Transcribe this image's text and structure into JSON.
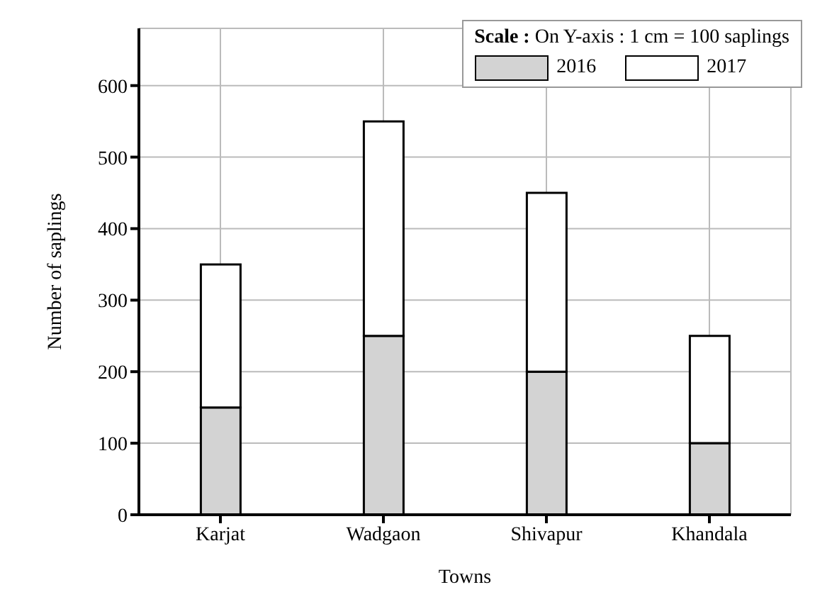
{
  "chart_data": {
    "type": "bar",
    "stacked": true,
    "xlabel": "Towns",
    "ylabel": "Number of saplings",
    "legend_title": "Scale : On Y-axis : 1 cm = 100 saplings",
    "categories": [
      "Karjat",
      "Wadgaon",
      "Shivapur",
      "Khandala"
    ],
    "series": [
      {
        "name": "2016",
        "color": "#d3d3d3",
        "values": [
          150,
          250,
          200,
          100
        ]
      },
      {
        "name": "2017",
        "color": "#ffffff",
        "values": [
          200,
          300,
          250,
          150
        ]
      }
    ],
    "ylim": [
      0,
      680
    ],
    "yticks": [
      0,
      100,
      200,
      300,
      400,
      500,
      600
    ],
    "grid": true,
    "legend": "top right"
  }
}
